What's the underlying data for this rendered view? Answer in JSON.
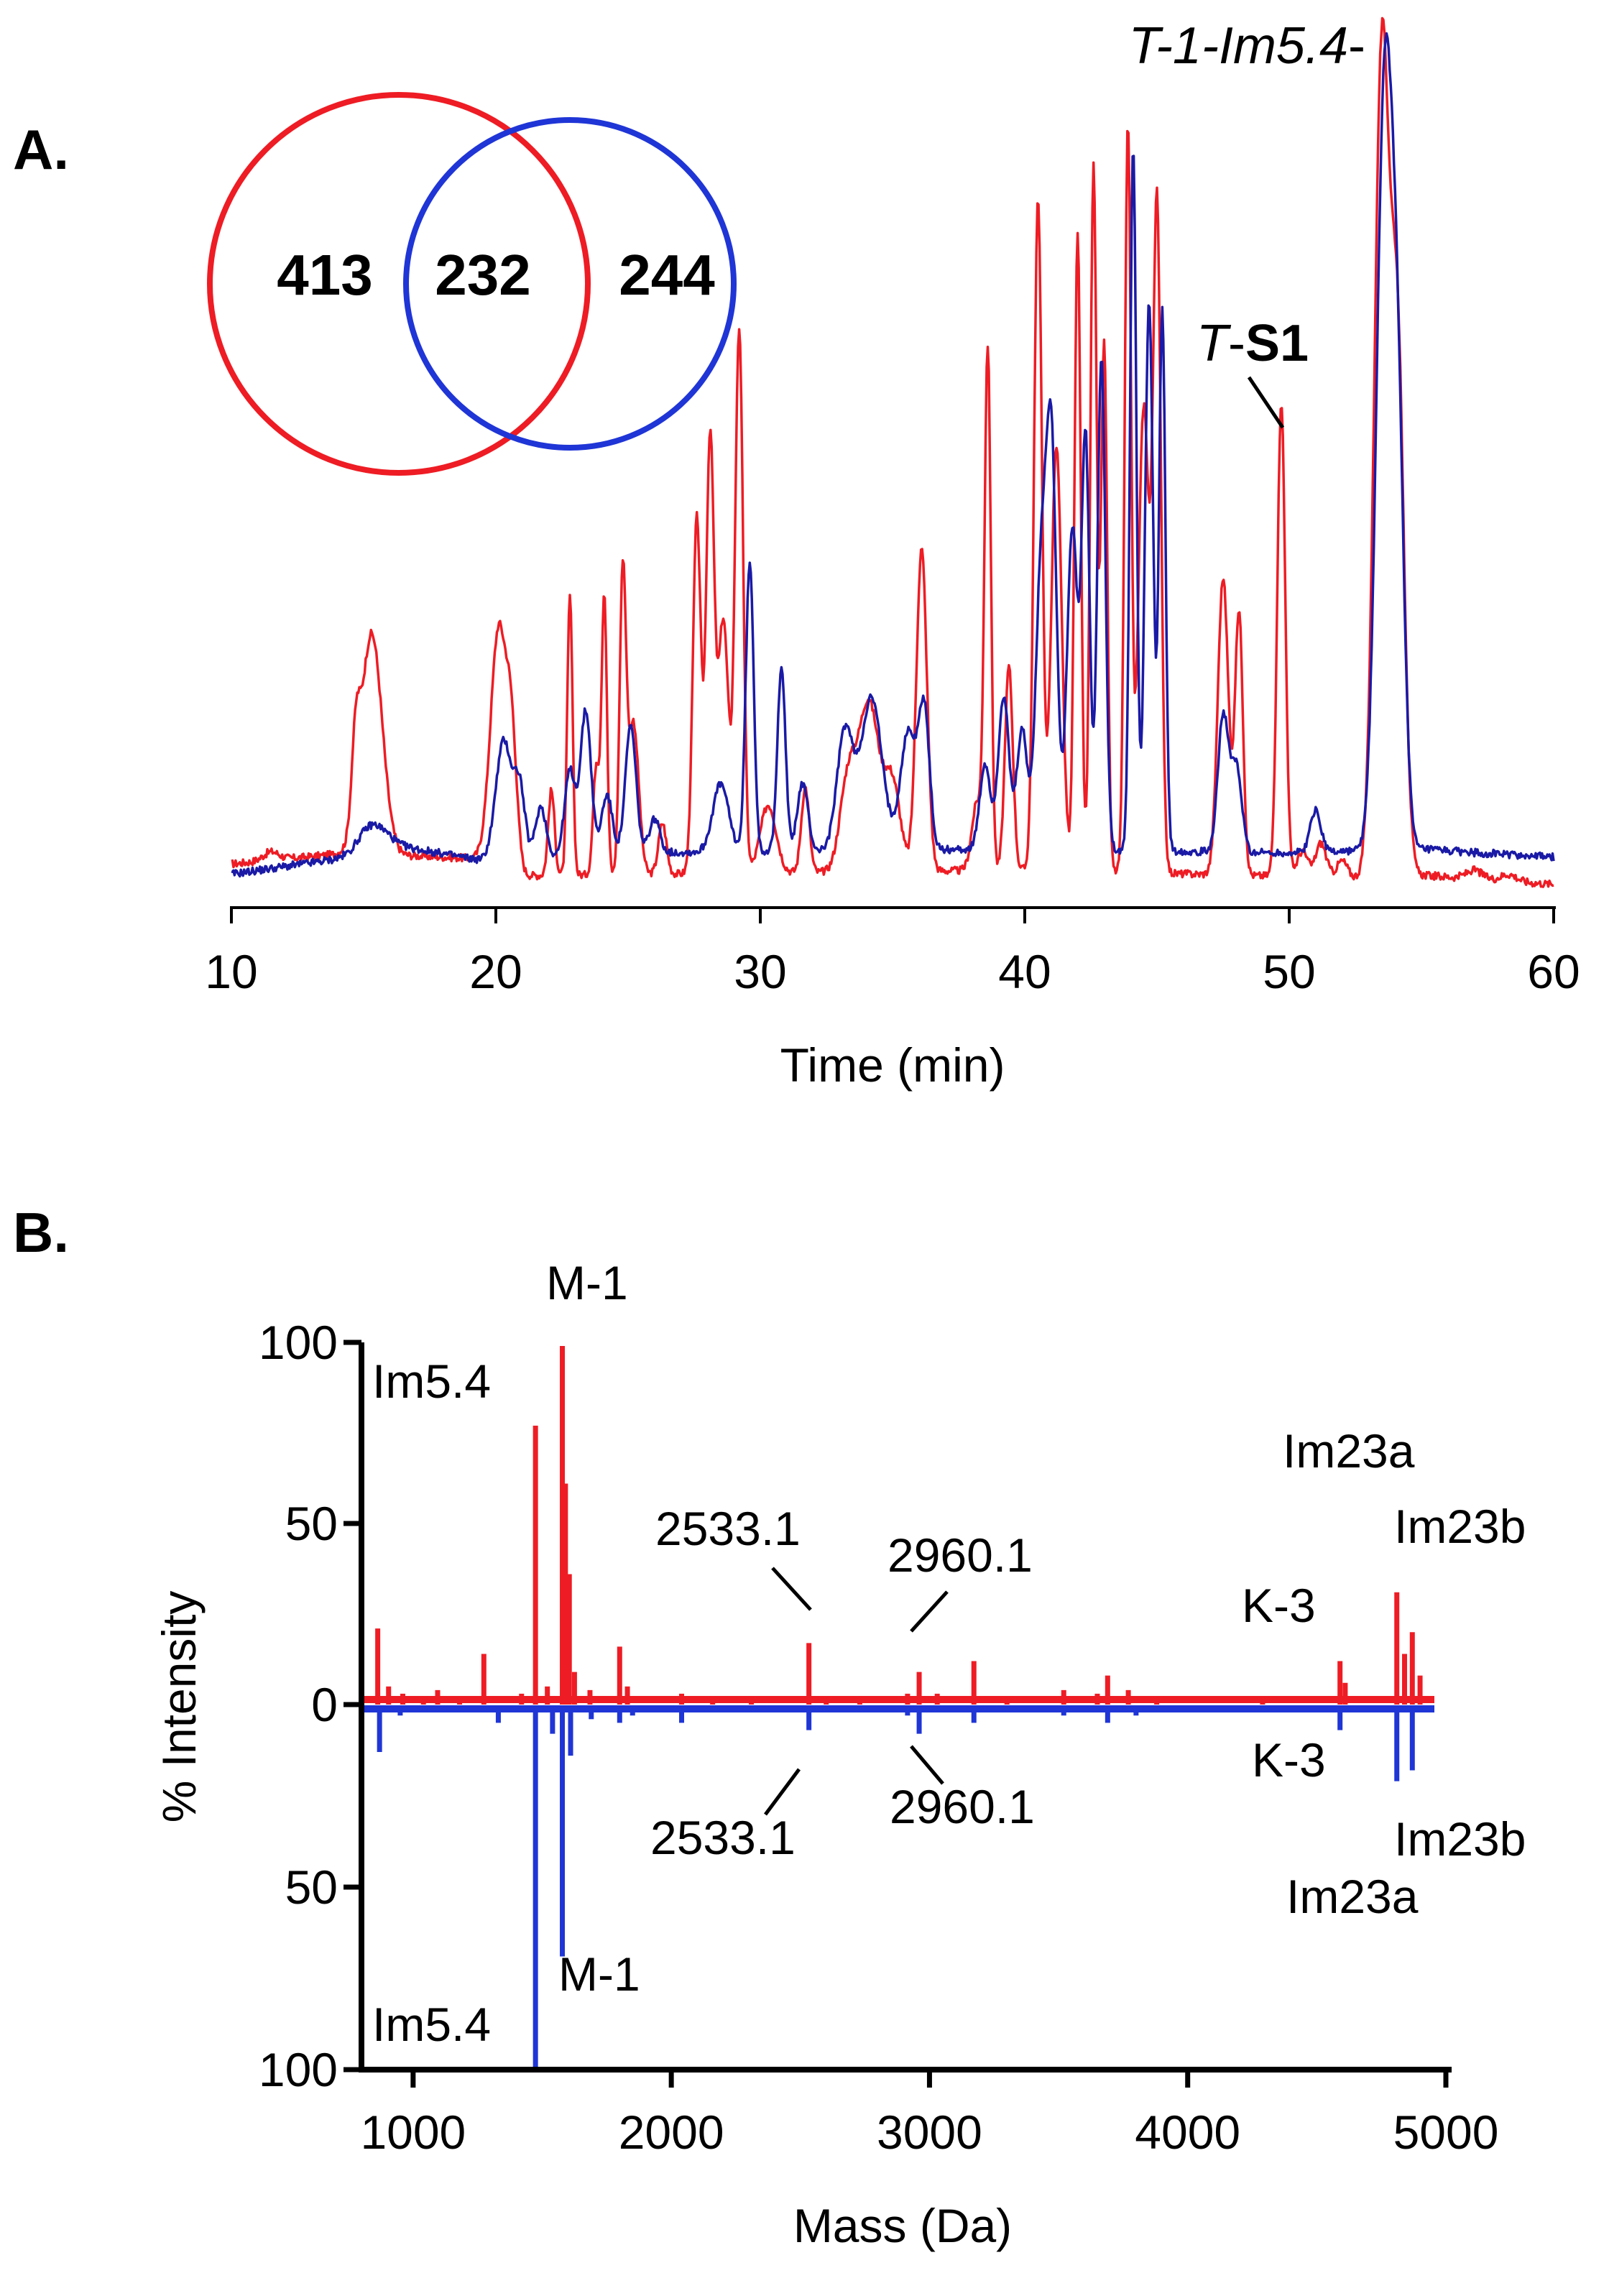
{
  "colors": {
    "red": "#ee1c24",
    "blue": "#1f35d6",
    "navy": "#1a1aa6",
    "axis": "#000000"
  },
  "panel_a": {
    "label": "A.",
    "venn": {
      "left_only": "413",
      "overlap": "232",
      "right_only": "244"
    }
  },
  "panel_b": {
    "label": "B."
  },
  "chart_data": [
    {
      "type": "line",
      "title": "",
      "xlabel": "Time (min)",
      "ylabel": "",
      "xlim": [
        10,
        60
      ],
      "ylim": [
        0,
        100
      ],
      "xticks": [
        "10",
        "20",
        "30",
        "40",
        "50",
        "60"
      ],
      "annotations": [
        {
          "parts": [
            {
              "text": "T-1-Im5.4",
              "italic": true
            },
            {
              "text": "-",
              "italic": false
            }
          ],
          "x": 53.6
        },
        {
          "parts": [
            {
              "text": "T",
              "italic": true
            },
            {
              "text": "-",
              "italic": false
            },
            {
              "text": "S1",
              "bold": true
            }
          ],
          "x": 49.7
        }
      ],
      "series": [
        {
          "name": "red",
          "color": "#ee1c24",
          "baseline": [
            [
              10,
              3.2
            ],
            [
              14.5,
              4.5
            ],
            [
              19.5,
              3.8
            ],
            [
              20,
              1.8
            ],
            [
              40,
              2.5
            ],
            [
              53,
              1.5
            ],
            [
              54.5,
              2.0
            ],
            [
              60,
              0.8
            ]
          ],
          "peaks": [
            [
              14.7,
              9,
              0.15
            ],
            [
              15.3,
              26,
              0.4
            ],
            [
              20.1,
              29,
              0.3
            ],
            [
              20.6,
              14,
              0.2
            ],
            [
              22.1,
              10,
              0.12
            ],
            [
              22.8,
              33,
              0.1
            ],
            [
              23.8,
              13,
              0.12
            ],
            [
              24.1,
              33,
              0.1
            ],
            [
              24.8,
              35,
              0.12
            ],
            [
              25.2,
              18,
              0.2
            ],
            [
              26.3,
              6,
              0.15
            ],
            [
              27.6,
              42,
              0.15
            ],
            [
              28.1,
              51,
              0.15
            ],
            [
              28.6,
              30,
              0.2
            ],
            [
              29.2,
              64,
              0.15
            ],
            [
              30.3,
              8,
              0.3
            ],
            [
              31.7,
              10,
              0.15
            ],
            [
              33.3,
              10,
              0.3
            ],
            [
              34.1,
              20,
              0.4
            ],
            [
              35,
              10,
              0.3
            ],
            [
              36.1,
              38,
              0.2
            ],
            [
              38.2,
              8,
              0.2
            ],
            [
              38.6,
              61,
              0.12
            ],
            [
              39.4,
              24,
              0.15
            ],
            [
              40.5,
              79,
              0.15
            ],
            [
              41.2,
              50,
              0.2
            ],
            [
              42,
              75,
              0.12
            ],
            [
              42.6,
              83,
              0.12
            ],
            [
              43,
              62,
              0.12
            ],
            [
              43.9,
              88,
              0.12
            ],
            [
              44.5,
              55,
              0.2
            ],
            [
              45,
              78,
              0.15
            ],
            [
              47.5,
              35,
              0.2
            ],
            [
              48.1,
              31,
              0.15
            ],
            [
              49.7,
              56,
              0.15
            ],
            [
              53.5,
              97,
              0.28
            ],
            [
              54.1,
              60,
              0.25
            ],
            [
              50.5,
              3,
              0.2
            ],
            [
              51.2,
              4,
              0.2
            ],
            [
              52,
              2,
              0.2
            ],
            [
              57,
              1,
              0.3
            ],
            [
              58.3,
              0.8,
              0.3
            ],
            [
              11.5,
              1,
              0.3
            ]
          ]
        },
        {
          "name": "blue",
          "color": "#1a1aa6",
          "baseline": [
            [
              10,
              2.0
            ],
            [
              14.5,
              4.0
            ],
            [
              16,
              5.5
            ],
            [
              19.5,
              3.6
            ],
            [
              25,
              4.5
            ],
            [
              40,
              5.0
            ],
            [
              50,
              4.5
            ],
            [
              53,
              4.8
            ],
            [
              54.5,
              5.0
            ],
            [
              60,
              4.0
            ]
          ],
          "peaks": [
            [
              15.3,
              3,
              0.5
            ],
            [
              20.3,
              14,
              0.3
            ],
            [
              20.9,
              8,
              0.2
            ],
            [
              21.7,
              6,
              0.2
            ],
            [
              22.8,
              10,
              0.2
            ],
            [
              23.4,
              17,
              0.2
            ],
            [
              24.2,
              7,
              0.2
            ],
            [
              25.1,
              15,
              0.2
            ],
            [
              26,
              4,
              0.2
            ],
            [
              28.5,
              8,
              0.3
            ],
            [
              29.6,
              34,
              0.15
            ],
            [
              30.8,
              22,
              0.15
            ],
            [
              31.6,
              8,
              0.2
            ],
            [
              33.2,
              14,
              0.3
            ],
            [
              34.2,
              18,
              0.4
            ],
            [
              35.6,
              14,
              0.3
            ],
            [
              36.2,
              16,
              0.2
            ],
            [
              38.5,
              10,
              0.2
            ],
            [
              39.2,
              18,
              0.2
            ],
            [
              39.9,
              14,
              0.2
            ],
            [
              40.6,
              30,
              0.2
            ],
            [
              41,
              48,
              0.2
            ],
            [
              41.8,
              38,
              0.2
            ],
            [
              42.3,
              48,
              0.15
            ],
            [
              42.9,
              58,
              0.15
            ],
            [
              44.1,
              83,
              0.12
            ],
            [
              44.7,
              65,
              0.15
            ],
            [
              45.2,
              64,
              0.12
            ],
            [
              47.5,
              16,
              0.2
            ],
            [
              48,
              10,
              0.2
            ],
            [
              51,
              5,
              0.2
            ],
            [
              53.6,
              88,
              0.3
            ],
            [
              54.1,
              45,
              0.25
            ]
          ]
        }
      ]
    },
    {
      "type": "bar",
      "title": "",
      "xlabel": "Mass (Da)",
      "ylabel": "% Intensity",
      "xlim": [
        800,
        5000
      ],
      "ylim": [
        -100,
        100
      ],
      "xticks": [
        "1000",
        "2000",
        "3000",
        "4000",
        "5000"
      ],
      "yticks": [
        {
          "value": 100,
          "label": "100"
        },
        {
          "value": 50,
          "label": "50"
        },
        {
          "value": 0,
          "label": "0"
        },
        {
          "value": -50,
          "label": "50"
        },
        {
          "value": -100,
          "label": "100"
        }
      ],
      "series": [
        {
          "name": "red (up)",
          "color": "#ee1c24",
          "bars": [
            [
              863,
              21
            ],
            [
              905,
              5
            ],
            [
              960,
              3
            ],
            [
              1040,
              2
            ],
            [
              1095,
              4
            ],
            [
              1180,
              2
            ],
            [
              1274,
              14
            ],
            [
              1420,
              3
            ],
            [
              1474,
              77
            ],
            [
              1520,
              5
            ],
            [
              1578,
              99
            ],
            [
              1590,
              61
            ],
            [
              1605,
              36
            ],
            [
              1625,
              9
            ],
            [
              1685,
              4
            ],
            [
              1800,
              16
            ],
            [
              1830,
              5
            ],
            [
              2040,
              3
            ],
            [
              2160,
              2
            ],
            [
              2310,
              2
            ],
            [
              2533,
              17
            ],
            [
              2600,
              2
            ],
            [
              2730,
              2
            ],
            [
              2915,
              3
            ],
            [
              2960,
              9
            ],
            [
              3030,
              3
            ],
            [
              3172,
              12
            ],
            [
              3300,
              2
            ],
            [
              3520,
              4
            ],
            [
              3650,
              3
            ],
            [
              3690,
              8
            ],
            [
              3770,
              4
            ],
            [
              3880,
              2
            ],
            [
              4290,
              2
            ],
            [
              4590,
              12
            ],
            [
              4610,
              6
            ],
            [
              4810,
              31
            ],
            [
              4840,
              14
            ],
            [
              4870,
              20
            ],
            [
              4900,
              8
            ]
          ],
          "labels": [
            {
              "text": "Im5.4",
              "x": 1474
            },
            {
              "text": "M-1",
              "x": 1578
            },
            {
              "text": "2533.1",
              "x": 2533
            },
            {
              "text": "2960.1",
              "x": 2960
            },
            {
              "text": "K-3",
              "x": 4590
            },
            {
              "text": "Im23a",
              "x": 4810
            },
            {
              "text": "Im23b",
              "x": 4870
            }
          ]
        },
        {
          "name": "blue (down)",
          "color": "#1f35d6",
          "bars": [
            [
              870,
              13
            ],
            [
              950,
              3
            ],
            [
              1040,
              2
            ],
            [
              1180,
              2
            ],
            [
              1330,
              5
            ],
            [
              1474,
              100
            ],
            [
              1540,
              8
            ],
            [
              1578,
              69
            ],
            [
              1610,
              14
            ],
            [
              1690,
              4
            ],
            [
              1800,
              5
            ],
            [
              1850,
              3
            ],
            [
              2040,
              5
            ],
            [
              2300,
              2
            ],
            [
              2533,
              7
            ],
            [
              2600,
              2
            ],
            [
              2730,
              2
            ],
            [
              2915,
              3
            ],
            [
              2960,
              8
            ],
            [
              3050,
              2
            ],
            [
              3172,
              5
            ],
            [
              3520,
              3
            ],
            [
              3690,
              5
            ],
            [
              3800,
              3
            ],
            [
              4590,
              7
            ],
            [
              4810,
              21
            ],
            [
              4870,
              18
            ]
          ],
          "labels": [
            {
              "text": "Im5.4",
              "x": 1474
            },
            {
              "text": "M-1",
              "x": 1578
            },
            {
              "text": "2533.1",
              "x": 2533
            },
            {
              "text": "2960.1",
              "x": 2960
            },
            {
              "text": "K-3",
              "x": 4590
            },
            {
              "text": "Im23b",
              "x": 4870
            },
            {
              "text": "Im23a",
              "x": 4810
            }
          ]
        }
      ]
    }
  ]
}
